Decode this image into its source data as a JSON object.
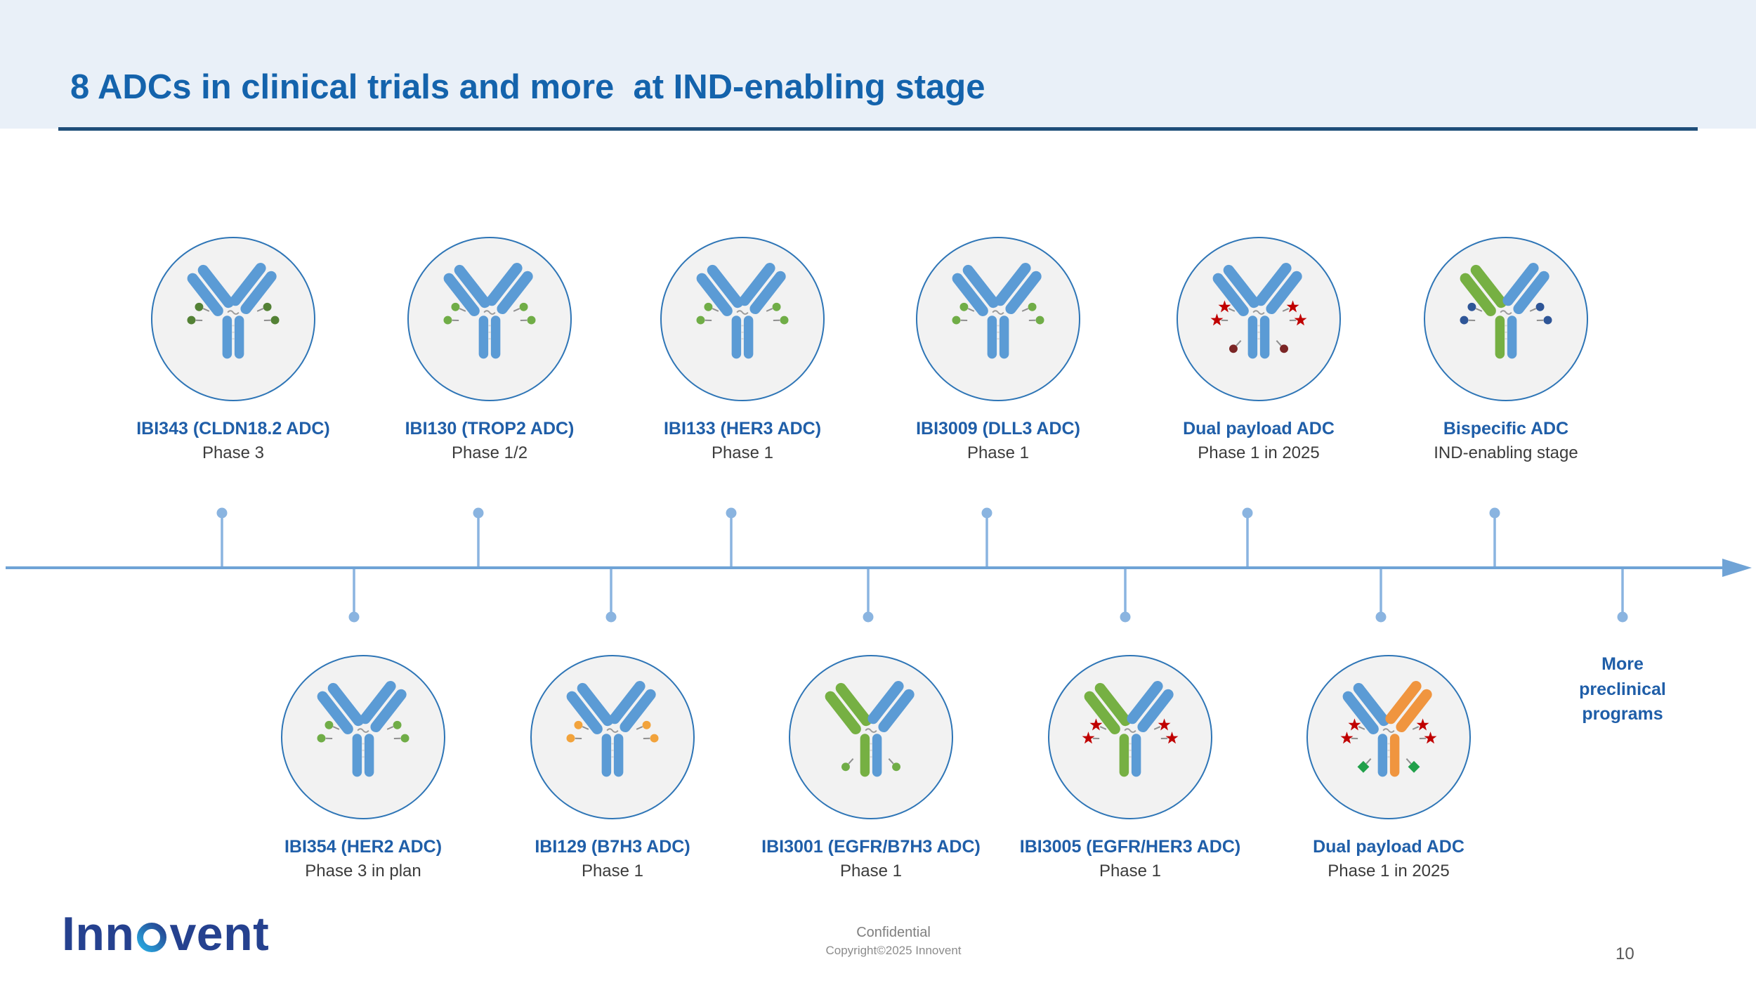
{
  "title": "8 ADCs in clinical trials and more  at IND-enabling stage",
  "rows": {
    "top": [
      {
        "name": "IBI343 (CLDN18.2 ADC)",
        "phase": "Phase 3",
        "icon": {
          "left_arm": "#5b9bd5",
          "right_arm": "#5b9bd5",
          "stem_left": "#5b9bd5",
          "stem_right": "#5b9bd5",
          "payloads": [
            {
              "shape": "dot",
              "color": "#538135",
              "slot": 0
            }
          ]
        }
      },
      {
        "name": "IBI130 (TROP2 ADC)",
        "phase": "Phase 1/2",
        "icon": {
          "left_arm": "#5b9bd5",
          "right_arm": "#5b9bd5",
          "stem_left": "#5b9bd5",
          "stem_right": "#5b9bd5",
          "payloads": [
            {
              "shape": "dot",
              "color": "#70ad47",
              "slot": 0
            }
          ]
        }
      },
      {
        "name": "IBI133 (HER3 ADC)",
        "phase": "Phase 1",
        "icon": {
          "left_arm": "#5b9bd5",
          "right_arm": "#5b9bd5",
          "stem_left": "#5b9bd5",
          "stem_right": "#5b9bd5",
          "payloads": [
            {
              "shape": "dot",
              "color": "#70ad47",
              "slot": 0
            }
          ]
        }
      },
      {
        "name": "IBI3009 (DLL3 ADC)",
        "phase": "Phase 1",
        "icon": {
          "left_arm": "#5b9bd5",
          "right_arm": "#5b9bd5",
          "stem_left": "#5b9bd5",
          "stem_right": "#5b9bd5",
          "payloads": [
            {
              "shape": "dot",
              "color": "#70ad47",
              "slot": 0
            }
          ]
        }
      },
      {
        "name": "Dual payload ADC",
        "phase": "Phase 1 in 2025",
        "icon": {
          "left_arm": "#5b9bd5",
          "right_arm": "#5b9bd5",
          "stem_left": "#5b9bd5",
          "stem_right": "#5b9bd5",
          "payloads": [
            {
              "shape": "star",
              "color": "#c00000",
              "slot": 0
            },
            {
              "shape": "dot",
              "color": "#7b2525",
              "slot": 1
            }
          ]
        }
      },
      {
        "name": "Bispecific ADC",
        "phase": "IND-enabling stage",
        "icon": {
          "left_arm": "#76b043",
          "right_arm": "#5b9bd5",
          "stem_left": "#76b043",
          "stem_right": "#5b9bd5",
          "payloads": [
            {
              "shape": "dot",
              "color": "#2e5597",
              "slot": 0
            }
          ]
        }
      }
    ],
    "bottom": [
      {
        "name": "IBI354 (HER2 ADC)",
        "phase": "Phase 3 in plan",
        "icon": {
          "left_arm": "#5b9bd5",
          "right_arm": "#5b9bd5",
          "stem_left": "#5b9bd5",
          "stem_right": "#5b9bd5",
          "payloads": [
            {
              "shape": "dot",
              "color": "#70ad47",
              "slot": 0
            }
          ]
        }
      },
      {
        "name": "IBI129 (B7H3 ADC)",
        "phase": "Phase 1",
        "icon": {
          "left_arm": "#5b9bd5",
          "right_arm": "#5b9bd5",
          "stem_left": "#5b9bd5",
          "stem_right": "#5b9bd5",
          "payloads": [
            {
              "shape": "dot",
              "color": "#f2a33c",
              "slot": 0
            }
          ]
        }
      },
      {
        "name": "IBI3001 (EGFR/B7H3 ADC)",
        "phase": "Phase 1",
        "icon": {
          "left_arm": "#76b043",
          "right_arm": "#5b9bd5",
          "stem_left": "#76b043",
          "stem_right": "#5b9bd5",
          "payloads": [
            {
              "shape": "dot",
              "color": "#70ad47",
              "slot": 1
            }
          ]
        }
      },
      {
        "name": "IBI3005 (EGFR/HER3 ADC)",
        "phase": "Phase 1",
        "icon": {
          "left_arm": "#76b043",
          "right_arm": "#5b9bd5",
          "stem_left": "#76b043",
          "stem_right": "#5b9bd5",
          "payloads": [
            {
              "shape": "star",
              "color": "#c00000",
              "slot": 0
            }
          ]
        }
      },
      {
        "name": "Dual payload ADC",
        "phase": "Phase 1 in 2025",
        "icon": {
          "left_arm": "#5b9bd5",
          "right_arm": "#f0953f",
          "stem_left": "#5b9bd5",
          "stem_right": "#f0953f",
          "payloads": [
            {
              "shape": "star",
              "color": "#c00000",
              "slot": 0
            },
            {
              "shape": "diamond",
              "color": "#21a04a",
              "slot": 1
            }
          ]
        }
      }
    ]
  },
  "more_programs": {
    "line1": "More",
    "line2": "preclinical",
    "line3": "programs"
  },
  "footer": {
    "logo_text": "Innovent",
    "logo_pre": "Inn",
    "logo_post": "vent",
    "confidential": "Confidential",
    "copyright": "Copyright©2025 Innovent",
    "page_number": "10"
  },
  "colors": {
    "accent_blue": "#1463ac",
    "timeline_blue": "#6fa3d6",
    "antibody_blue": "#5b9bd5",
    "antibody_green": "#76b043",
    "antibody_orange": "#f0953f",
    "payload_green": "#70ad47",
    "payload_red": "#c00000"
  }
}
